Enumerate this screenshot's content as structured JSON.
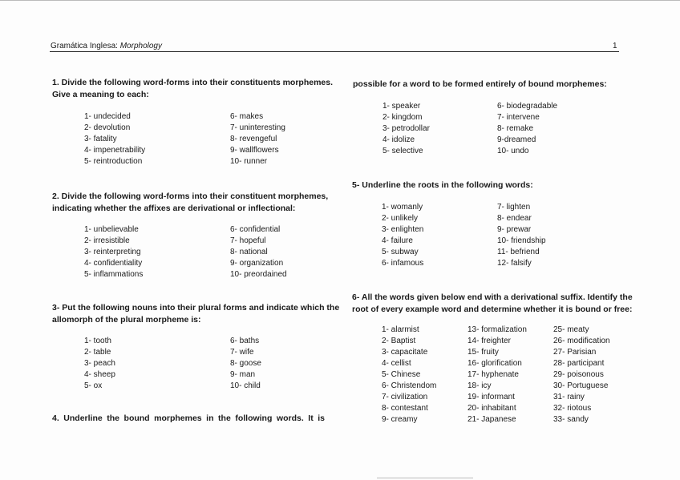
{
  "header": {
    "course": "Gramática Inglesa:",
    "subject": "Morphology",
    "page_number": "1"
  },
  "q1": {
    "title_line1": "1. Divide the following word-forms into their constituents morphemes.",
    "title_line2": "Give a meaning to each:",
    "col1": [
      "1- undecided",
      "2- devolution",
      "3- fatality",
      "4- impenetrability",
      "5- reintroduction"
    ],
    "col2": [
      "6- makes",
      "7- uninteresting",
      "8- revengeful",
      "9- wallflowers",
      "10- runner"
    ]
  },
  "q2": {
    "title_line1": "2. Divide the following word-forms into their constituent morphemes,",
    "title_line2": "indicating whether the affixes are derivational or inflectional:",
    "col1": [
      "1- unbelievable",
      "2- irresistible",
      "3- reinterpreting",
      "4- confidentiality",
      "5- inflammations"
    ],
    "col2": [
      "6- confidential",
      "7- hopeful",
      "8- national",
      "9- organization",
      "10- preordained"
    ]
  },
  "q3": {
    "title_line1": "3- Put the following nouns into their plural forms and indicate which the",
    "title_line2": "allomorph of the plural morpheme is:",
    "col1": [
      "1- tooth",
      "2- table",
      "3- peach",
      "4- sheep",
      "5- ox"
    ],
    "col2": [
      "6- baths",
      "7- wife",
      "8- goose",
      "9- man",
      "10- child"
    ]
  },
  "q4": {
    "title_line1": "4. Underline the bound morphemes in the following words. It is",
    "title_line2": "possible for a word to be formed entirely of bound morphemes:",
    "col1": [
      "1- speaker",
      "2- kingdom",
      "3- petrodollar",
      "4- idolize",
      "5- selective"
    ],
    "col2": [
      "6- biodegradable",
      "7- intervene",
      "8- remake",
      "9-dreamed",
      "10- undo"
    ]
  },
  "q5": {
    "title": "5- Underline the roots in the following words:",
    "col1": [
      "1- womanly",
      "2- unlikely",
      "3- enlighten",
      "4- failure",
      "5- subway",
      "6- infamous"
    ],
    "col2": [
      "7- lighten",
      "8- endear",
      "9- prewar",
      "10- friendship",
      "11- befriend",
      "12- falsify"
    ]
  },
  "q6": {
    "title_line1": "6- All the words given below end with a derivational suffix. Identify the",
    "title_line2": "root of every example word and determine whether it is bound or free:",
    "col1": [
      "1- alarmist",
      "2- Baptist",
      "3- capacitate",
      "4- cellist",
      "5- Chinese",
      "6- Christendom",
      "7- civilization",
      "8- contestant",
      "9- creamy"
    ],
    "col2": [
      "13- formalization",
      "14- freighter",
      "15- fruity",
      "16- glorification",
      "17- hyphenate",
      "18- icy",
      "19- informant",
      "20- inhabitant",
      "21- Japanese"
    ],
    "col3": [
      "25- meaty",
      "26- modification",
      "27- Parisian",
      "28- participant",
      "29- poisonous",
      "30- Portuguese",
      "31- rainy",
      "32- riotous",
      "33- sandy"
    ]
  }
}
